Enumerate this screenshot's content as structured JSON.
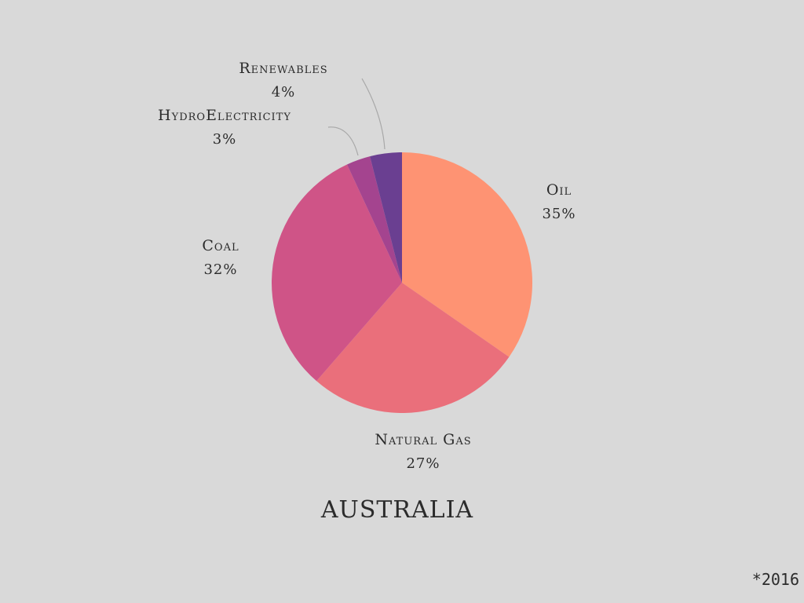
{
  "chart_data": {
    "type": "pie",
    "title": "AUSTRALIA",
    "footnote": "*2016",
    "start_angle_deg": 0,
    "direction": "clockwise",
    "slices": [
      {
        "label": "Oil",
        "percent_text": "35%",
        "value": 35,
        "color": "#fe9373"
      },
      {
        "label": "Natural Gas",
        "percent_text": "27%",
        "value": 27,
        "color": "#ea6f7b"
      },
      {
        "label": "Coal",
        "percent_text": "32%",
        "value": 32,
        "color": "#cf5487"
      },
      {
        "label": "HydroElectricity",
        "percent_text": "3%",
        "value": 3,
        "color": "#a4448f"
      },
      {
        "label": "Renewables",
        "percent_text": "4%",
        "value": 4,
        "color": "#6a3f91"
      }
    ]
  }
}
